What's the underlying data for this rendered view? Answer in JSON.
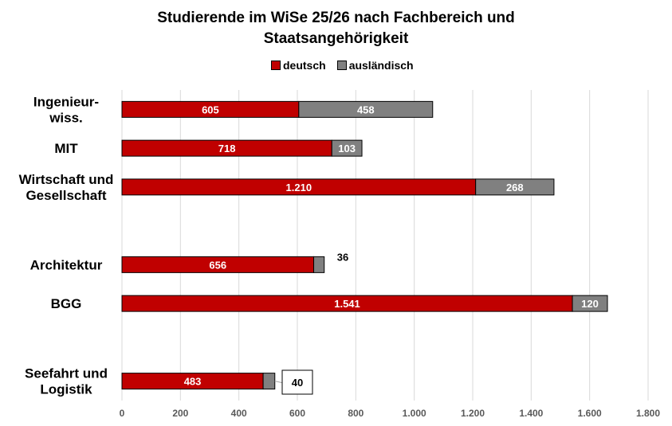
{
  "chart_data": {
    "type": "bar",
    "orientation": "horizontal",
    "stacked": true,
    "title_lines": [
      "Studierende im WiSe 25/26 nach Fachbereich und",
      "Staatsangehörigkeit"
    ],
    "categories": [
      [
        "Ingenieur-",
        "wiss."
      ],
      [
        "MIT"
      ],
      [
        "Wirtschaft und",
        "Gesellschaft"
      ],
      [],
      [
        "Architektur"
      ],
      [
        "BGG"
      ],
      [],
      [
        "Seefahrt und",
        "Logistik"
      ]
    ],
    "series": [
      {
        "name": "deutsch",
        "color": "#C00000",
        "values": [
          605,
          718,
          1210,
          null,
          656,
          1541,
          null,
          483
        ],
        "labels": [
          "605",
          "718",
          "1.210",
          "",
          "656",
          "1.541",
          "",
          "483"
        ]
      },
      {
        "name": "ausländisch",
        "color": "#808080",
        "values": [
          458,
          103,
          268,
          null,
          36,
          120,
          null,
          40
        ],
        "labels": [
          "458",
          "103",
          "268",
          "",
          "36",
          "120",
          "",
          "40"
        ]
      }
    ],
    "xlim": [
      0,
      1800
    ],
    "xticks": [
      0,
      200,
      400,
      600,
      800,
      1000,
      1200,
      1400,
      1600,
      1800
    ],
    "xtick_labels": [
      "0",
      "200",
      "400",
      "600",
      "800",
      "1.000",
      "1.200",
      "1.400",
      "1.600",
      "1.800"
    ],
    "grid": "vertical",
    "legend": "top"
  }
}
